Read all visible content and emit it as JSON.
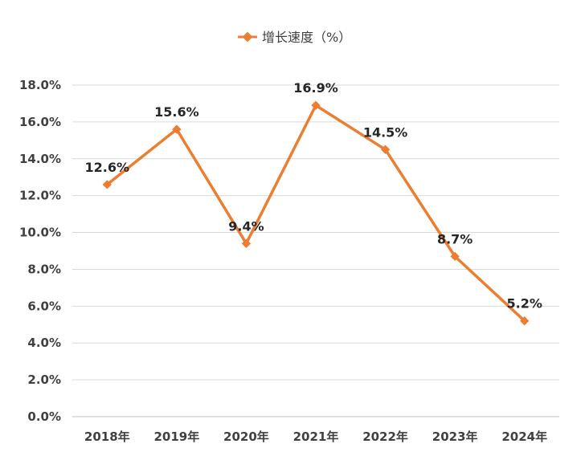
{
  "chart_data": {
    "type": "line",
    "title": "",
    "xlabel": "",
    "ylabel": "",
    "legend_position": "top-center",
    "categories": [
      "2018年",
      "2019年",
      "2020年",
      "2021年",
      "2022年",
      "2023年",
      "2024年"
    ],
    "series": [
      {
        "name": "增长速度（%）",
        "color": "#ED7D31",
        "values": [
          12.6,
          15.6,
          9.4,
          16.9,
          14.5,
          8.7,
          5.2
        ],
        "labels": [
          "12.6%",
          "15.6%",
          "9.4%",
          "16.9%",
          "14.5%",
          "8.7%",
          "5.2%"
        ]
      }
    ],
    "ylim": [
      0,
      18
    ],
    "y_ticks": [
      0,
      2,
      4,
      6,
      8,
      10,
      12,
      14,
      16,
      18
    ],
    "y_tick_labels": [
      "0.0%",
      "2.0%",
      "4.0%",
      "6.0%",
      "8.0%",
      "10.0%",
      "12.0%",
      "14.0%",
      "16.0%",
      "18.0%"
    ],
    "grid": true
  }
}
